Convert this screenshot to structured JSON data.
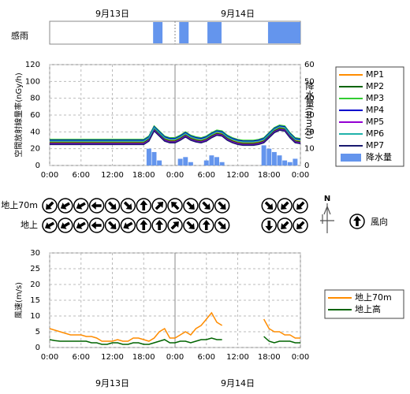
{
  "chart_data": [
    {
      "type": "timeline",
      "label": "感雨",
      "color": "#6495ed",
      "xlim": [
        0,
        48
      ],
      "date_labels": [
        {
          "value": 12,
          "label": "9月13日"
        },
        {
          "value": 36,
          "label": "9月14日"
        }
      ],
      "intervals": [
        [
          19.8,
          21.6
        ],
        [
          24.8,
          26.6
        ],
        [
          30.2,
          32.9
        ],
        [
          41.8,
          48
        ]
      ]
    },
    {
      "type": "line",
      "ylabel": "空間放射線量率(nGy/h)",
      "y2label": "降水量(mm/h)",
      "xlim": [
        0,
        48
      ],
      "ylim": [
        0,
        120
      ],
      "y2lim": [
        0,
        60
      ],
      "grid": true,
      "x": [
        0,
        1,
        2,
        3,
        4,
        5,
        6,
        7,
        8,
        9,
        10,
        11,
        12,
        13,
        14,
        15,
        16,
        17,
        18,
        19,
        20,
        21,
        22,
        23,
        24,
        25,
        26,
        27,
        28,
        29,
        30,
        31,
        32,
        33,
        34,
        35,
        36,
        37,
        38,
        39,
        40,
        41,
        42,
        43,
        44,
        45,
        46,
        47,
        48
      ],
      "xticks": [
        {
          "value": 0,
          "label": "0:00"
        },
        {
          "value": 6,
          "label": "6:00"
        },
        {
          "value": 12,
          "label": "12:00"
        },
        {
          "value": 18,
          "label": "18:00"
        },
        {
          "value": 24,
          "label": "0:00"
        },
        {
          "value": 30,
          "label": "6:00"
        },
        {
          "value": 36,
          "label": "12:00"
        },
        {
          "value": 42,
          "label": "18:00"
        },
        {
          "value": 48,
          "label": "0:00"
        }
      ],
      "yticks": [
        0,
        20,
        40,
        60,
        80,
        100,
        120
      ],
      "y2ticks": [
        0,
        10,
        20,
        30,
        40,
        50,
        60
      ],
      "series": [
        {
          "name": "MP1",
          "color": "#ff8c00",
          "values": [
            28,
            28,
            28,
            28,
            28,
            28,
            28,
            28,
            28,
            28,
            28,
            28,
            28,
            28,
            28,
            28,
            28,
            28,
            28,
            32,
            44,
            38,
            32,
            30,
            30,
            33,
            37,
            33,
            31,
            30,
            32,
            36,
            39,
            38,
            33,
            30,
            28,
            27,
            27,
            27,
            28,
            30,
            36,
            42,
            45,
            44,
            36,
            30,
            29
          ]
        },
        {
          "name": "MP2",
          "color": "#006400",
          "values": [
            27,
            27,
            27,
            27,
            27,
            27,
            27,
            27,
            27,
            27,
            27,
            27,
            27,
            27,
            27,
            27,
            27,
            27,
            27,
            31,
            43,
            37,
            31,
            29,
            29,
            32,
            36,
            32,
            30,
            29,
            31,
            35,
            38,
            37,
            32,
            29,
            27,
            26,
            26,
            26,
            27,
            29,
            35,
            41,
            44,
            43,
            35,
            29,
            28
          ]
        },
        {
          "name": "MP3",
          "color": "#32cd32",
          "values": [
            31,
            31,
            31,
            31,
            31,
            31,
            31,
            31,
            31,
            31,
            31,
            31,
            31,
            31,
            31,
            31,
            31,
            31,
            31,
            35,
            47,
            41,
            35,
            33,
            33,
            36,
            40,
            36,
            34,
            33,
            35,
            39,
            42,
            41,
            36,
            33,
            31,
            30,
            30,
            30,
            31,
            33,
            39,
            45,
            48,
            47,
            39,
            33,
            32
          ]
        },
        {
          "name": "MP4",
          "color": "#0000cd",
          "values": [
            30,
            30,
            30,
            30,
            30,
            30,
            30,
            30,
            30,
            30,
            30,
            30,
            30,
            30,
            30,
            30,
            30,
            30,
            30,
            34,
            46,
            40,
            34,
            32,
            32,
            35,
            39,
            35,
            33,
            32,
            34,
            38,
            41,
            40,
            35,
            32,
            30,
            29,
            29,
            29,
            30,
            32,
            38,
            44,
            47,
            46,
            38,
            32,
            31
          ]
        },
        {
          "name": "MP5",
          "color": "#9400d3",
          "values": [
            26,
            26,
            26,
            26,
            26,
            26,
            26,
            26,
            26,
            26,
            26,
            26,
            26,
            26,
            26,
            26,
            26,
            26,
            26,
            30,
            42,
            36,
            30,
            28,
            28,
            31,
            35,
            31,
            29,
            28,
            30,
            34,
            37,
            36,
            31,
            28,
            26,
            25,
            25,
            25,
            26,
            28,
            34,
            40,
            43,
            42,
            34,
            28,
            27
          ]
        },
        {
          "name": "MP6",
          "color": "#20b2aa",
          "values": [
            29,
            29,
            29,
            29,
            29,
            29,
            29,
            29,
            29,
            29,
            29,
            29,
            29,
            29,
            29,
            29,
            29,
            29,
            29,
            33,
            45,
            39,
            33,
            31,
            31,
            34,
            38,
            34,
            32,
            31,
            33,
            37,
            40,
            39,
            34,
            31,
            29,
            28,
            28,
            28,
            29,
            31,
            37,
            43,
            46,
            45,
            37,
            31,
            30
          ]
        },
        {
          "name": "MP7",
          "color": "#191970",
          "values": [
            25,
            25,
            25,
            25,
            25,
            25,
            25,
            25,
            25,
            25,
            25,
            25,
            25,
            25,
            25,
            25,
            25,
            25,
            25,
            29,
            41,
            35,
            29,
            27,
            27,
            30,
            34,
            30,
            28,
            27,
            29,
            33,
            36,
            35,
            30,
            27,
            25,
            24,
            24,
            24,
            25,
            27,
            33,
            39,
            42,
            41,
            33,
            27,
            26
          ]
        },
        {
          "name": "降水量",
          "color": "#6495ed",
          "type": "bar",
          "axis": "y2",
          "values": [
            0,
            0,
            0,
            0,
            0,
            0,
            0,
            0,
            0,
            0,
            0,
            0,
            0,
            0,
            0,
            0,
            0,
            0,
            0,
            10,
            8,
            3,
            0,
            0,
            0,
            4,
            5,
            2,
            0,
            0,
            3,
            6,
            5,
            2,
            0,
            0,
            0,
            0,
            0,
            0,
            0,
            12,
            10,
            8,
            6,
            3,
            2,
            4,
            0
          ]
        }
      ]
    },
    {
      "type": "wind-direction",
      "legend_label": "風向",
      "compass_label": "N",
      "x": [
        0,
        3,
        6,
        9,
        12,
        15,
        18,
        21,
        24,
        27,
        30,
        33,
        42,
        45,
        48
      ],
      "rows": [
        {
          "name": "地上70m",
          "values": [
            225,
            240,
            240,
            270,
            135,
            135,
            0,
            45,
            315,
            135,
            135,
            135,
            135,
            225,
            225
          ]
        },
        {
          "name": "地上",
          "values": [
            240,
            240,
            240,
            270,
            135,
            240,
            0,
            0,
            45,
            135,
            0,
            135,
            180,
            225,
            225
          ]
        }
      ]
    },
    {
      "type": "line",
      "ylabel": "風速(m/s)",
      "xlim": [
        0,
        48
      ],
      "ylim": [
        0,
        30
      ],
      "grid": true,
      "x": [
        0,
        1,
        2,
        3,
        4,
        5,
        6,
        7,
        8,
        9,
        10,
        11,
        12,
        13,
        14,
        15,
        16,
        17,
        18,
        19,
        20,
        21,
        22,
        23,
        24,
        25,
        26,
        27,
        28,
        29,
        30,
        31,
        32,
        33,
        34,
        35,
        36,
        37,
        38,
        39,
        40,
        41,
        42,
        43,
        44,
        45,
        46,
        47,
        48
      ],
      "xticks": [
        {
          "value": 0,
          "label": "0:00"
        },
        {
          "value": 6,
          "label": "6:00"
        },
        {
          "value": 12,
          "label": "12:00"
        },
        {
          "value": 18,
          "label": "18:00"
        },
        {
          "value": 24,
          "label": "0:00"
        },
        {
          "value": 30,
          "label": "6:00"
        },
        {
          "value": 36,
          "label": "12:00"
        },
        {
          "value": 42,
          "label": "18:00"
        },
        {
          "value": 48,
          "label": "0:00"
        }
      ],
      "yticks": [
        0,
        5,
        10,
        15,
        20,
        25,
        30
      ],
      "date_labels": [
        {
          "value": 12,
          "label": "9月13日"
        },
        {
          "value": 36,
          "label": "9月14日"
        }
      ],
      "series": [
        {
          "name": "地上70m",
          "color": "#ff8c00",
          "values": [
            6,
            5.5,
            5,
            4.5,
            4,
            4,
            4,
            3.5,
            3.5,
            3,
            2,
            2,
            2,
            2.5,
            2,
            2,
            3,
            3,
            2.5,
            2,
            3,
            5,
            6,
            3,
            3,
            4,
            5,
            4,
            6,
            7,
            9,
            11,
            8,
            7,
            null,
            null,
            null,
            null,
            null,
            null,
            null,
            9,
            6,
            5,
            5,
            4,
            4,
            3,
            3
          ]
        },
        {
          "name": "地上高",
          "color": "#006400",
          "values": [
            2.5,
            2.2,
            2,
            2,
            2,
            2,
            2,
            2,
            1.5,
            1.5,
            1,
            1,
            1.5,
            1.5,
            1,
            1,
            1.5,
            1.5,
            1,
            1,
            1.5,
            2,
            2.5,
            1.5,
            1.5,
            2,
            2,
            1.5,
            2,
            2.5,
            2.5,
            3,
            2.5,
            2.5,
            null,
            null,
            null,
            null,
            null,
            null,
            null,
            3.5,
            2,
            1.5,
            2,
            2,
            2,
            1.5,
            1.5
          ]
        }
      ]
    }
  ]
}
